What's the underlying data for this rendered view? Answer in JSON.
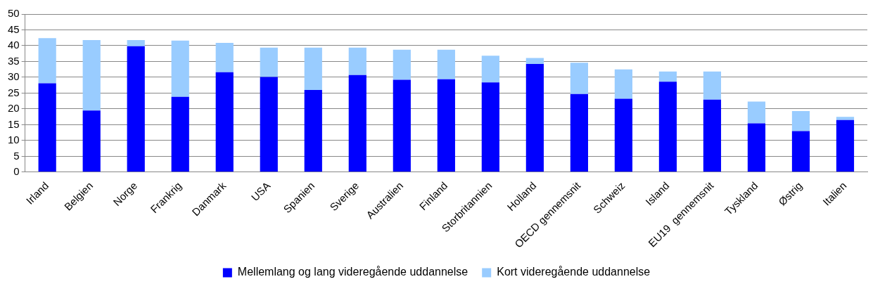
{
  "chart_data": {
    "type": "bar",
    "stacked": true,
    "categories": [
      "Irland",
      "Belgien",
      "Norge",
      "Frankrig",
      "Danmark",
      "USA",
      "Spanien",
      "Sverige",
      "Australien",
      "Finland",
      "Storbritannien",
      "Holland",
      "OECD gennemsnit",
      "Schweiz",
      "Island",
      "EU19  gennemsnit",
      "Tyskland",
      "Østrig",
      "Italien"
    ],
    "series": [
      {
        "name": "Mellemlang og lang videregående uddannelse",
        "color": "#0000ff",
        "values": [
          28.1,
          19.5,
          39.8,
          23.8,
          31.6,
          30.1,
          26.0,
          30.7,
          29.2,
          29.4,
          28.4,
          34.2,
          24.7,
          23.2,
          28.6,
          22.9,
          15.4,
          13.0,
          16.5
        ]
      },
      {
        "name": "Kort videregående uddannelse",
        "color": "#99ccff",
        "values": [
          14.3,
          22.3,
          2.0,
          17.8,
          9.3,
          9.3,
          13.4,
          8.7,
          9.5,
          9.3,
          8.4,
          1.9,
          9.9,
          9.3,
          3.2,
          8.9,
          6.9,
          6.3,
          1.0
        ]
      }
    ],
    "ylim": [
      0,
      50
    ],
    "yticks": [
      0,
      5,
      10,
      15,
      20,
      25,
      30,
      35,
      40,
      45,
      50
    ],
    "grid": "y",
    "legend": "bottom"
  }
}
